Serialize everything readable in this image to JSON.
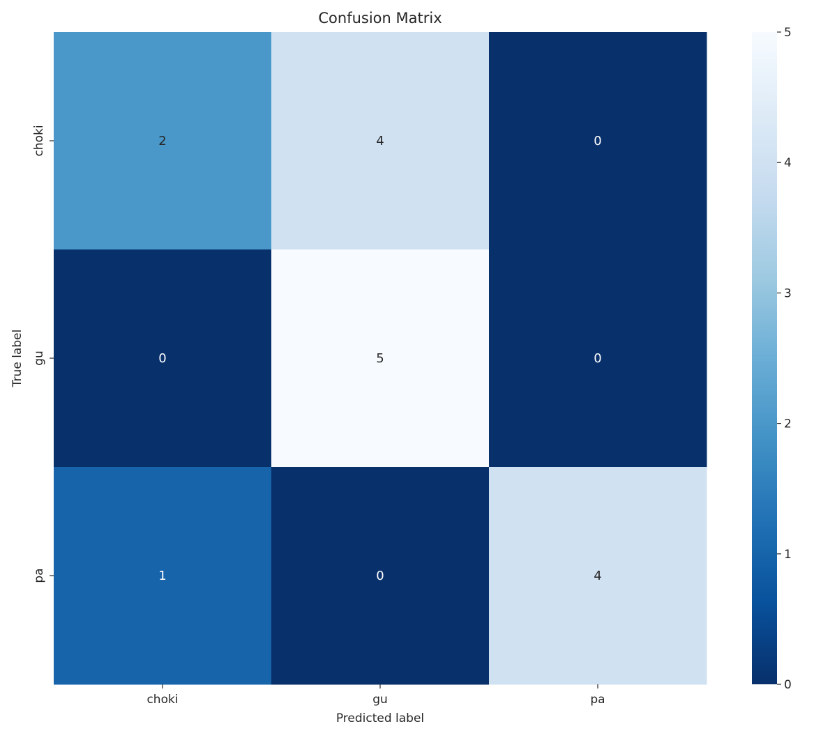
{
  "chart_data": {
    "type": "heatmap",
    "title": "Confusion Matrix",
    "xlabel": "Predicted label",
    "ylabel": "True label",
    "x_categories": [
      "choki",
      "gu",
      "pa"
    ],
    "y_categories": [
      "choki",
      "gu",
      "pa"
    ],
    "values": [
      [
        2,
        4,
        0
      ],
      [
        0,
        5,
        0
      ],
      [
        1,
        0,
        4
      ]
    ],
    "annotations": true,
    "colormap": "Blues_r",
    "colormap_stops": [
      "#08306b",
      "#08519c",
      "#2171b5",
      "#4292c6",
      "#6baed6",
      "#9ecae1",
      "#c6dbef",
      "#deebf7",
      "#f7fbff"
    ],
    "colorbar": {
      "range": [
        0,
        5
      ],
      "ticks": [
        0,
        1,
        2,
        3,
        4,
        5
      ]
    },
    "grid": false
  }
}
